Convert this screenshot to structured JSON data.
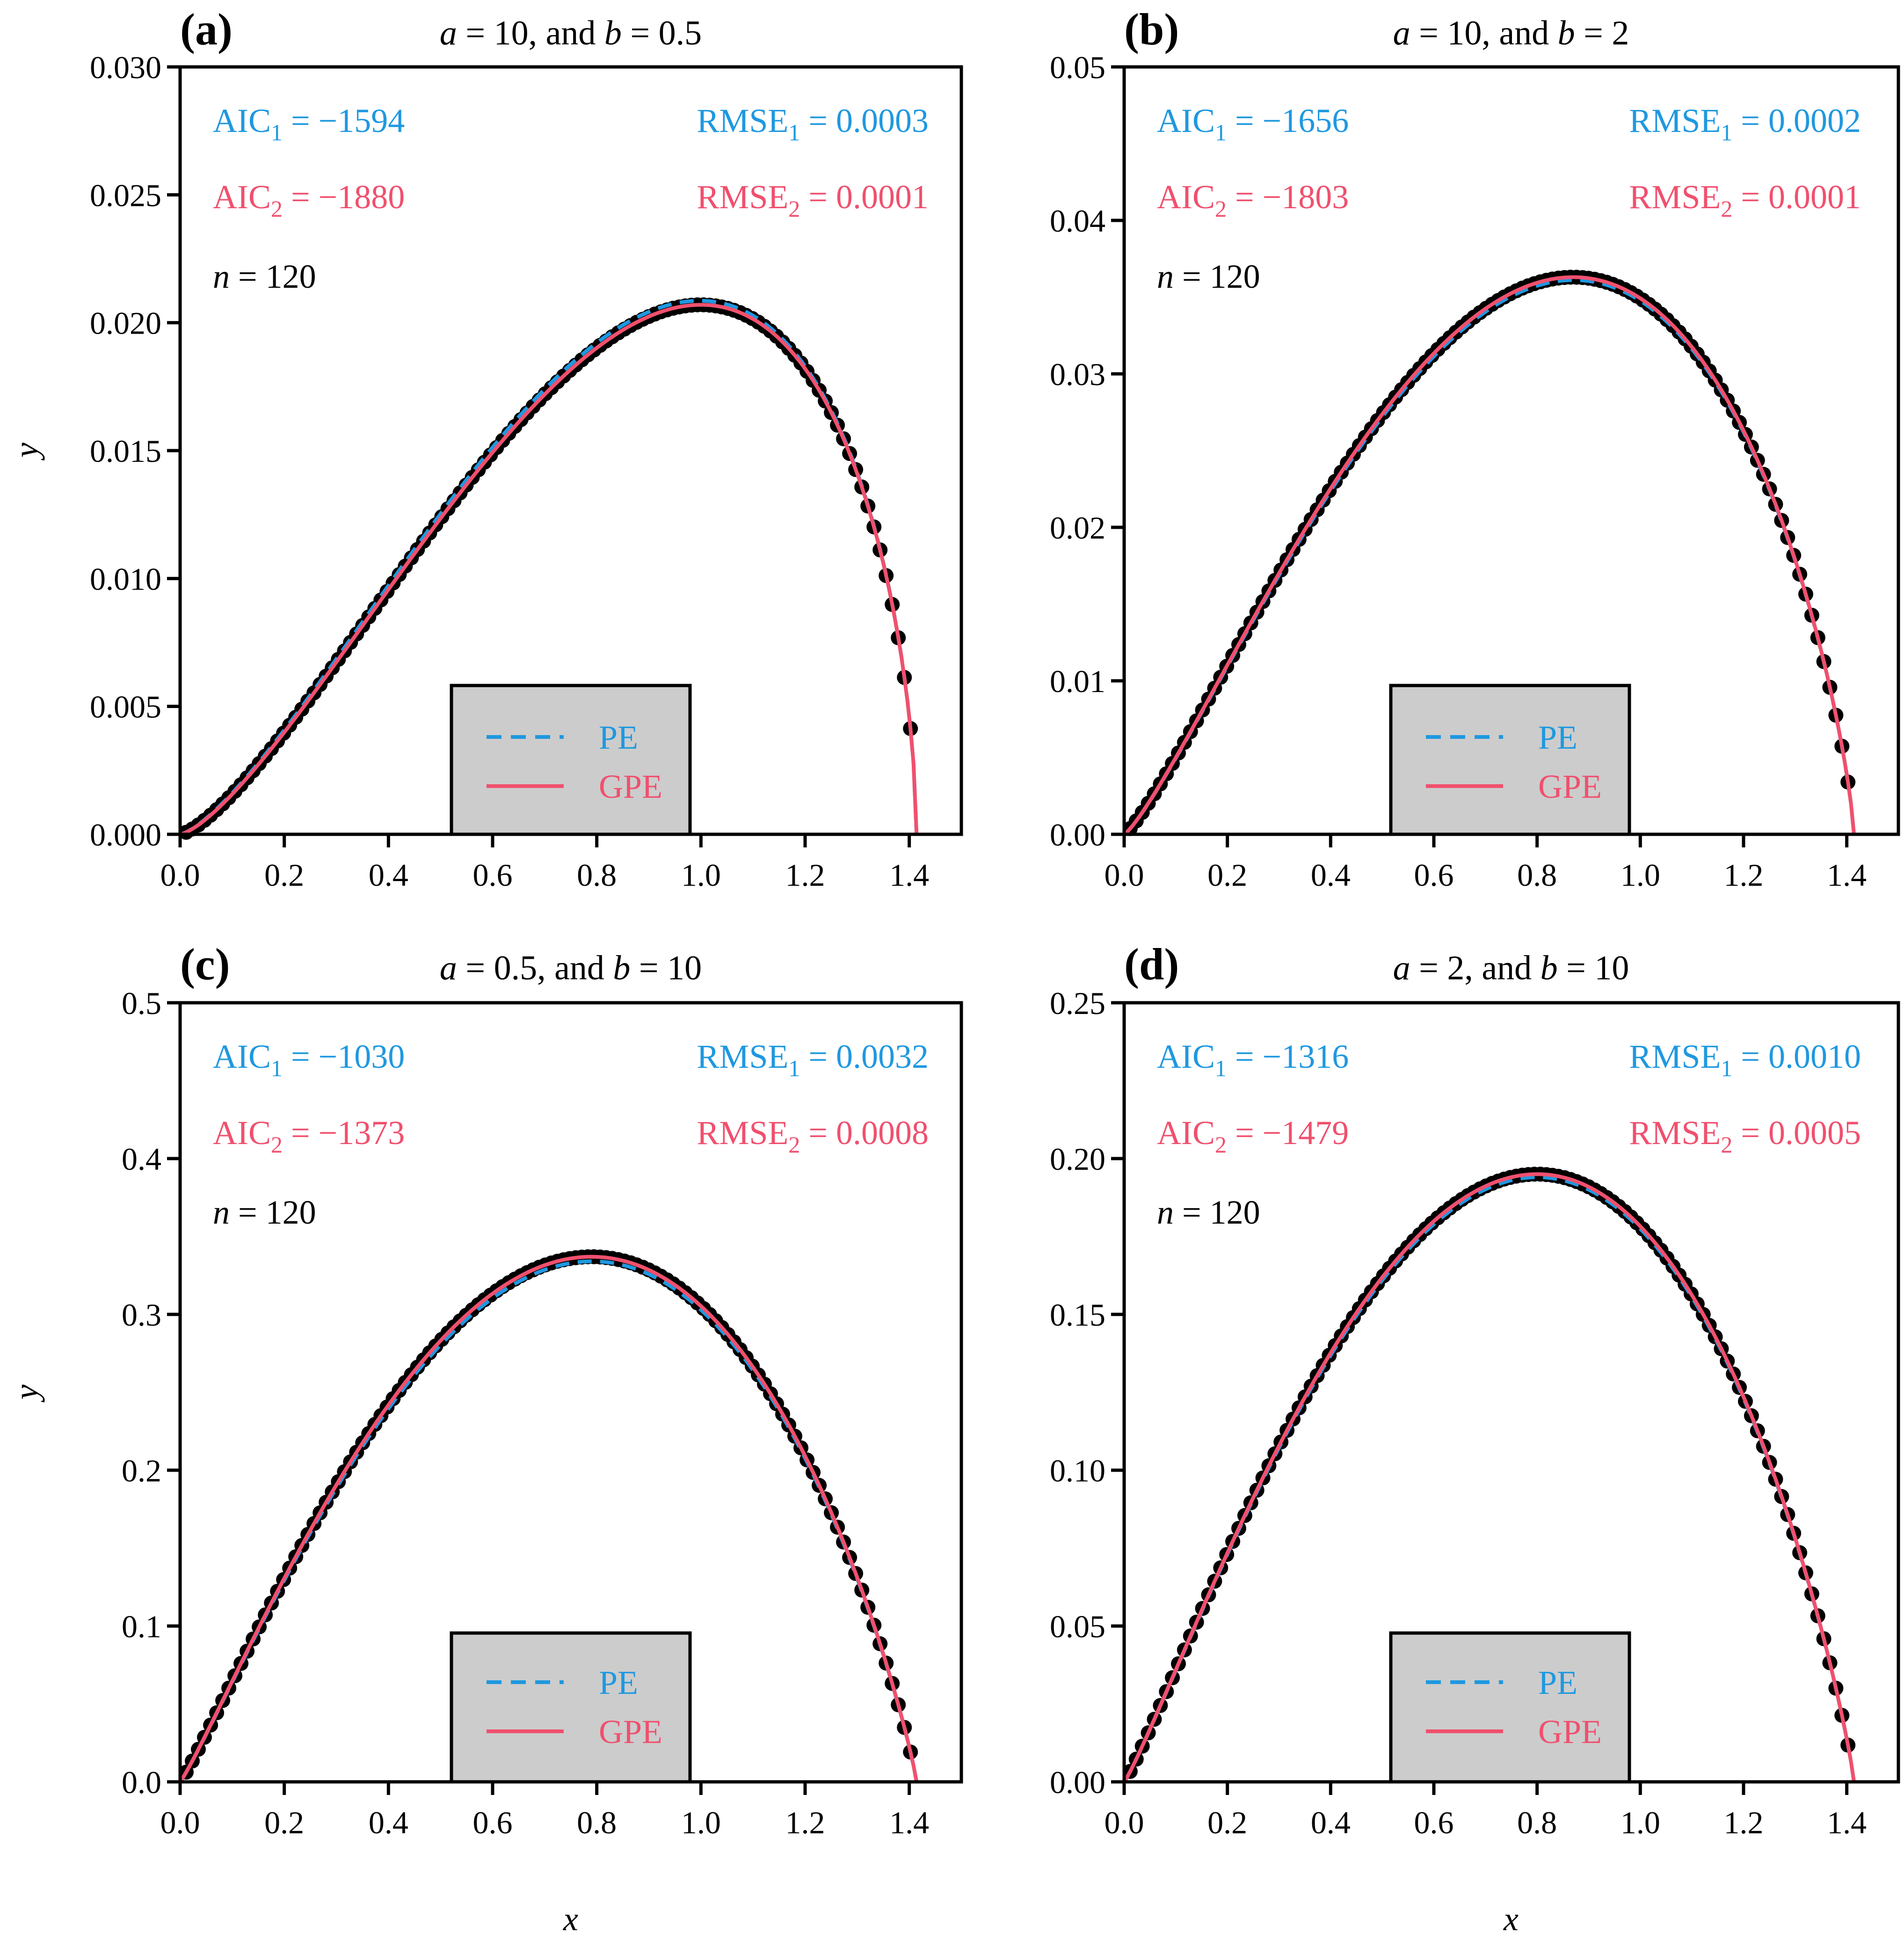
{
  "figure": {
    "x_axis_label": "x",
    "y_axis_label": "y",
    "colors": {
      "pe": "#1f98e0",
      "gpe": "#f0506e",
      "points": "#000000",
      "legend_bg": "#cccccc"
    }
  },
  "chart_data": [
    {
      "id": "a",
      "panel_label": "(a)",
      "title_a": "a",
      "title_a_val": " = 10, and ",
      "title_b": "b",
      "title_b_val": " = 0.5",
      "type": "scatter",
      "xlim": [
        0,
        1.5
      ],
      "ylim": [
        0,
        0.03
      ],
      "xticks": [
        "0.0",
        "0.2",
        "0.4",
        "0.6",
        "0.8",
        "1.0",
        "1.2",
        "1.4"
      ],
      "yticks": [
        "0.000",
        "0.005",
        "0.010",
        "0.015",
        "0.020",
        "0.025",
        "0.030"
      ],
      "aic1_label": "AIC",
      "aic1_sub": "1",
      "aic1_value": " = −1594",
      "aic2_label": "AIC",
      "aic2_sub": "2",
      "aic2_value": " = −1880",
      "rmse1_label": "RMSE",
      "rmse1_sub": "1",
      "rmse1_value": " = 0.0003",
      "rmse2_label": "RMSE",
      "rmse2_sub": "2",
      "rmse2_value": " = 0.0001",
      "n_label": "n",
      "n_value": " = 120",
      "legend": [
        "PE",
        "GPE"
      ],
      "peak_x": 1.0,
      "peak_y": 0.0207,
      "x_end": 1.414,
      "shape": 1.0,
      "pe_offset": 0.0002
    },
    {
      "id": "b",
      "panel_label": "(b)",
      "title_a": "a",
      "title_a_val": " = 10, and ",
      "title_b": "b",
      "title_b_val": " = 2",
      "type": "scatter",
      "xlim": [
        0,
        1.5
      ],
      "ylim": [
        0,
        0.05
      ],
      "xticks": [
        "0.0",
        "0.2",
        "0.4",
        "0.6",
        "0.8",
        "1.0",
        "1.2",
        "1.4"
      ],
      "yticks": [
        "0.00",
        "0.01",
        "0.02",
        "0.03",
        "0.04",
        "0.05"
      ],
      "aic1_label": "AIC",
      "aic1_sub": "1",
      "aic1_value": " = −1656",
      "aic2_label": "AIC",
      "aic2_sub": "2",
      "aic2_value": " = −1803",
      "rmse1_label": "RMSE",
      "rmse1_sub": "1",
      "rmse1_value": " = 0.0002",
      "rmse2_label": "RMSE",
      "rmse2_sub": "2",
      "rmse2_value": " = 0.0001",
      "n_label": "n",
      "n_value": " = 120",
      "legend": [
        "PE",
        "GPE"
      ],
      "peak_x": 0.87,
      "peak_y": 0.0363,
      "x_end": 1.414,
      "shape": 0.72,
      "pe_offset": -0.0002
    },
    {
      "id": "c",
      "panel_label": "(c)",
      "title_a": "a",
      "title_a_val": " = 0.5, and ",
      "title_b": "b",
      "title_b_val": " = 10",
      "type": "scatter",
      "xlim": [
        0,
        1.5
      ],
      "ylim": [
        0,
        0.5
      ],
      "xticks": [
        "0.0",
        "0.2",
        "0.4",
        "0.6",
        "0.8",
        "1.0",
        "1.2",
        "1.4"
      ],
      "yticks": [
        "0.0",
        "0.1",
        "0.2",
        "0.3",
        "0.4",
        "0.5"
      ],
      "aic1_label": "AIC",
      "aic1_sub": "1",
      "aic1_value": " = −1030",
      "aic2_label": "AIC",
      "aic2_sub": "2",
      "aic2_value": " = −1373",
      "rmse1_label": "RMSE",
      "rmse1_sub": "1",
      "rmse1_value": " = 0.0032",
      "rmse2_label": "RMSE",
      "rmse2_sub": "2",
      "rmse2_value": " = 0.0008",
      "n_label": "n",
      "n_value": " = 120",
      "legend": [
        "PE",
        "GPE"
      ],
      "peak_x": 0.79,
      "peak_y": 0.337,
      "x_end": 1.414,
      "shape": 0.95,
      "pe_offset": -0.003
    },
    {
      "id": "d",
      "panel_label": "(d)",
      "title_a": "a",
      "title_a_val": " = 2, and ",
      "title_b": "b",
      "title_b_val": " = 10",
      "type": "scatter",
      "xlim": [
        0,
        1.5
      ],
      "ylim": [
        0,
        0.25
      ],
      "xticks": [
        "0.0",
        "0.2",
        "0.4",
        "0.6",
        "0.8",
        "1.0",
        "1.2",
        "1.4"
      ],
      "yticks": [
        "0.00",
        "0.05",
        "0.10",
        "0.15",
        "0.20",
        "0.25"
      ],
      "aic1_label": "AIC",
      "aic1_sub": "1",
      "aic1_value": " = −1316",
      "aic2_label": "AIC",
      "aic2_sub": "2",
      "aic2_value": " = −1479",
      "rmse1_label": "RMSE",
      "rmse1_sub": "1",
      "rmse1_value": " = 0.0010",
      "rmse2_label": "RMSE",
      "rmse2_sub": "2",
      "rmse2_value": " = 0.0005",
      "n_label": "n",
      "n_value": " = 120",
      "legend": [
        "PE",
        "GPE"
      ],
      "peak_x": 0.8,
      "peak_y": 0.195,
      "x_end": 1.414,
      "shape": 0.6,
      "pe_offset": -0.001
    }
  ]
}
